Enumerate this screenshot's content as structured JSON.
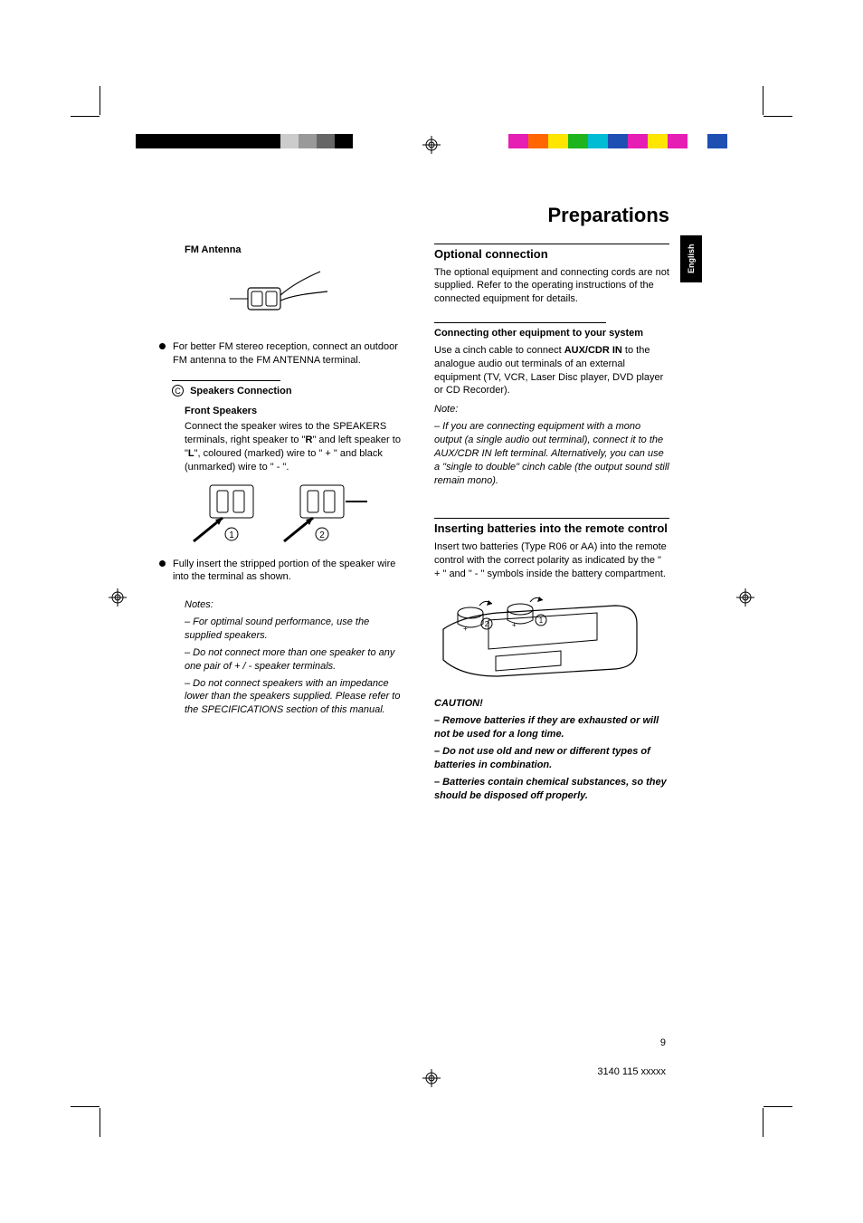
{
  "chapter_title": "Preparations",
  "lang_tab": "English",
  "page_number": "9",
  "doc_code": "3140 115 xxxxx",
  "colorbar_left": [
    "#000000",
    "#000000",
    "#000000",
    "#000000",
    "#000000",
    "#000000",
    "#000000",
    "#000000",
    "#cccccc",
    "#999999",
    "#666666",
    "#000000",
    "#ffffff"
  ],
  "colorbar_right": [
    "#e61eb4",
    "#ff6600",
    "#ffe600",
    "#1eb41e",
    "#00bcd4",
    "#1e50b4",
    "#e61eb4",
    "#ffe600",
    "#e61eb4",
    "#ffffff",
    "#1e50b4"
  ],
  "left": {
    "fm_heading": "FM Antenna",
    "fm_bullet": "For better FM stereo reception, connect an outdoor FM antenna to the FM ANTENNA terminal.",
    "spk_label": "C",
    "spk_heading": "Speakers Connection",
    "front_heading": "Front Speakers",
    "front_para_a": "Connect the speaker wires to the SPEAKERS terminals, right speaker to \"",
    "front_R": "R",
    "front_para_b": "\" and left speaker to \"",
    "front_L": "L",
    "front_para_c": "\", coloured (marked) wire to \" + \" and black (unmarked) wire to \" - \".",
    "insert_bullet": "Fully insert the stripped portion of the speaker wire into the terminal as shown.",
    "notes_heading": "Notes:",
    "note1": "–  For optimal sound performance, use the supplied speakers.",
    "note2": "–  Do not connect more than one speaker to any one pair of  + /  -  speaker terminals.",
    "note3": "–  Do not connect speakers with an impedance lower than the speakers supplied.  Please refer to the SPECIFICATIONS section of this manual."
  },
  "right": {
    "opt_heading": "Optional connection",
    "opt_para": "The optional equipment and connecting cords are not supplied.  Refer to the operating instructions of the connected equipment for details.",
    "other_heading": "Connecting other equipment to your system",
    "other_para_a": "Use a cinch cable to connect ",
    "other_bold": "AUX/CDR IN",
    "other_para_b": " to the analogue audio out terminals of an external equipment (TV, VCR, Laser Disc player, DVD player or CD Recorder).",
    "note_heading": "Note:",
    "note_body": "–  If you are connecting equipment with a mono output (a single audio out terminal), connect it to the AUX/CDR IN left terminal.  Alternatively, you can use a \"single to double\" cinch cable (the output sound still remain mono).",
    "batt_heading": "Inserting batteries into the remote control",
    "batt_para": "Insert two batteries (Type R06 or AA) into the remote control with the correct polarity as indicated by the \" + \" and \" - \" symbols inside the battery compartment.",
    "caution_heading": "CAUTION!",
    "caution1": "–  Remove batteries if they are exhausted or will not be used for a long time.",
    "caution2": "–  Do not use old and new or different types of batteries in combination.",
    "caution3": "–  Batteries contain chemical substances, so they should be disposed off properly."
  }
}
